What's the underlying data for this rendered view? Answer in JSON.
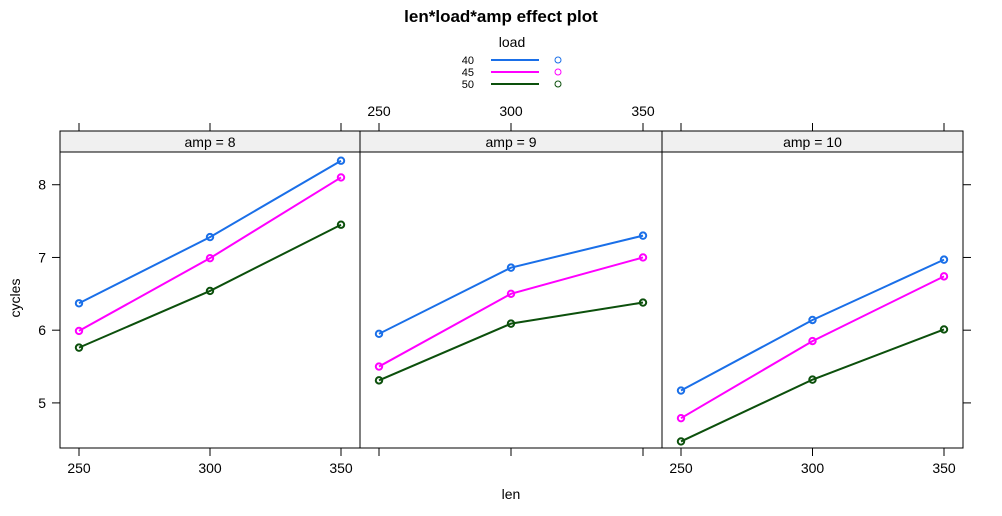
{
  "chart_data": {
    "type": "line",
    "title": "len*load*amp effect plot",
    "xlabel": "len",
    "ylabel": "cycles",
    "x": [
      250,
      300,
      350
    ],
    "x_ticks": [
      "250",
      "300",
      "350"
    ],
    "y_ticks": [
      "5",
      "6",
      "7",
      "8"
    ],
    "ylim": [
      4.38,
      8.45
    ],
    "legend": {
      "title": "load",
      "placement": "top-center",
      "entries": [
        "40",
        "45",
        "50"
      ]
    },
    "colors": {
      "40": "#1a6fe8",
      "45": "#ff00ff",
      "50": "#0c500c"
    },
    "panels": [
      {
        "strip": "amp = 8",
        "series": [
          {
            "name": "40",
            "values": [
              6.37,
              7.28,
              8.33
            ]
          },
          {
            "name": "45",
            "values": [
              5.99,
              6.99,
              8.1
            ]
          },
          {
            "name": "50",
            "values": [
              5.76,
              6.54,
              7.45
            ]
          }
        ]
      },
      {
        "strip": "amp = 9",
        "series": [
          {
            "name": "40",
            "values": [
              5.95,
              6.86,
              7.3
            ]
          },
          {
            "name": "45",
            "values": [
              5.5,
              6.5,
              7.0
            ]
          },
          {
            "name": "50",
            "values": [
              5.31,
              6.09,
              6.38
            ]
          }
        ]
      },
      {
        "strip": "amp = 10",
        "series": [
          {
            "name": "40",
            "values": [
              5.17,
              6.14,
              6.97
            ]
          },
          {
            "name": "45",
            "values": [
              4.79,
              5.85,
              6.74
            ]
          },
          {
            "name": "50",
            "values": [
              4.47,
              5.32,
              6.01
            ]
          }
        ]
      }
    ]
  }
}
